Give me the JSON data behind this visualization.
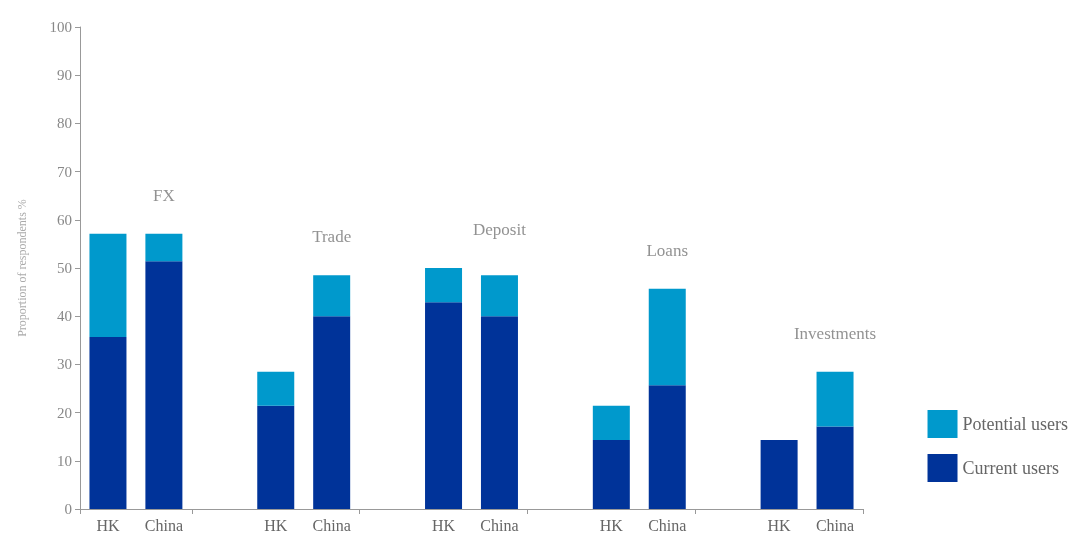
{
  "chart_data": {
    "type": "bar",
    "stacked": true,
    "ylabel": "Proportion of respondents %",
    "categories": [
      "HK",
      "China",
      null,
      "HK",
      "China",
      null,
      "HK",
      "China",
      null,
      "HK",
      "China",
      null,
      "HK",
      "China"
    ],
    "series": [
      {
        "name": "Current users",
        "color": "#003399",
        "values": [
          35.7,
          51.4,
          null,
          21.4,
          40,
          null,
          42.9,
          40,
          null,
          14.3,
          25.7,
          null,
          14.3,
          17.1
        ]
      },
      {
        "name": "Potential users",
        "color": "#0099cc",
        "values": [
          21.4,
          5.7,
          null,
          7.1,
          8.5,
          null,
          7.1,
          8.5,
          null,
          7.1,
          20,
          null,
          0,
          11.4
        ]
      }
    ],
    "annotations": [
      "FX",
      "Trade",
      "Deposit",
      "Loans",
      "Investments"
    ],
    "ylim": [
      0,
      100
    ],
    "yticks": [
      0,
      10,
      20,
      30,
      40,
      50,
      60,
      70,
      80,
      90,
      100
    ],
    "grid": false,
    "legend": "right"
  }
}
